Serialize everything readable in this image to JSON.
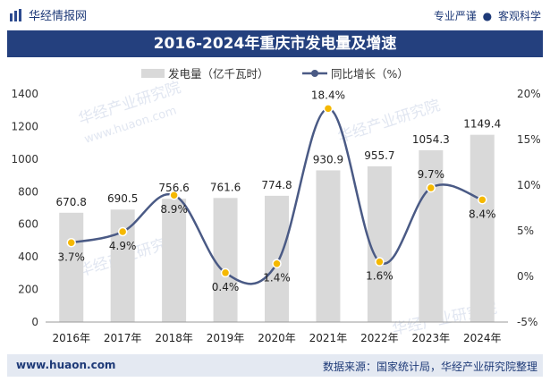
{
  "header": {
    "site": "华经情报网",
    "tag1": "专业严谨",
    "tag2": "客观科学"
  },
  "title": "2016-2024年重庆市发电量及增速",
  "footer": {
    "url": "www.huaon.com",
    "source": "数据来源：国家统计局，华经产业研究院整理"
  },
  "watermarks": [
    "华经产业研究院",
    "www.huaon.com"
  ],
  "colors": {
    "bar": "#d9d9d9",
    "line": "#4a5a85",
    "point": "#f5b800",
    "title_bg": "#24407e"
  },
  "chart_data": {
    "type": "bar+line",
    "title": "2016-2024年重庆市发电量及增速",
    "categories": [
      "2016年",
      "2017年",
      "2018年",
      "2019年",
      "2020年",
      "2021年",
      "2022年",
      "2023年",
      "2024年"
    ],
    "series": [
      {
        "name": "发电量（亿千瓦时）",
        "type": "bar",
        "axis": "left",
        "values": [
          670.8,
          690.5,
          756.6,
          761.6,
          774.8,
          930.9,
          955.7,
          1054.3,
          1149.4
        ],
        "labels": [
          "670.8",
          "690.5",
          "756.6",
          "761.6",
          "774.8",
          "930.9",
          "955.7",
          "1054.3",
          "1149.4"
        ]
      },
      {
        "name": "同比增长（%）",
        "type": "line",
        "axis": "right",
        "values": [
          3.7,
          4.9,
          8.9,
          0.4,
          1.4,
          18.4,
          1.6,
          9.7,
          8.4
        ],
        "labels": [
          "3.7%",
          "4.9%",
          "8.9%",
          "0.4%",
          "1.4%",
          "18.4%",
          "1.6%",
          "9.7%",
          "8.4%"
        ]
      }
    ],
    "y_left": {
      "min": 0,
      "max": 1400,
      "ticks": [
        "0",
        "200",
        "400",
        "600",
        "800",
        "1000",
        "1200",
        "1400"
      ],
      "tick_values": [
        0,
        200,
        400,
        600,
        800,
        1000,
        1200,
        1400
      ]
    },
    "y_right": {
      "min": -5,
      "max": 20,
      "ticks": [
        "-5%",
        "0%",
        "5%",
        "10%",
        "15%",
        "20%"
      ],
      "tick_values": [
        -5,
        0,
        5,
        10,
        15,
        20
      ]
    },
    "legend_position": "top-center"
  }
}
